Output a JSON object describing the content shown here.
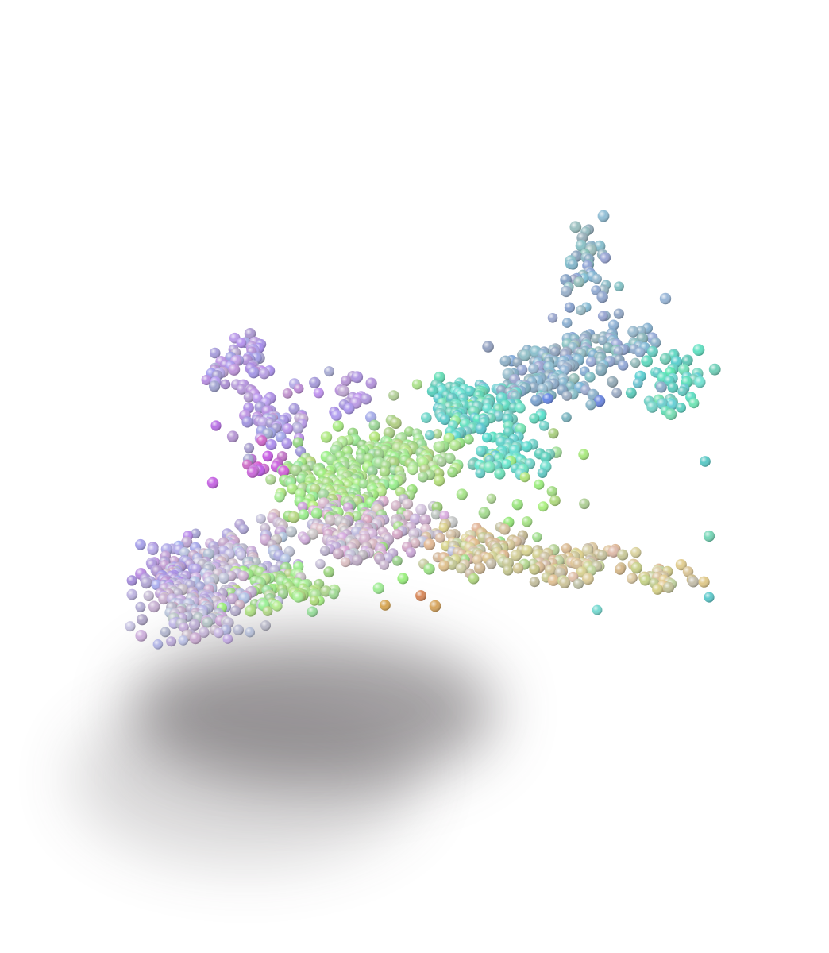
{
  "scene": {
    "background": "#ffffff",
    "subject": "point-cloud-airplane",
    "sphere_palette": {
      "nose": "#bfb6d6",
      "cockpit": "#b29ee0",
      "tail_fin": "#8fb3c9",
      "fuselage_upper": "#a6e08c",
      "fuselage_mid": "#cdb8d0",
      "wing_right": "#d2c79a",
      "tail_tip": "#6ad6c4",
      "highlight_magenta": "#c86ad8",
      "accent_orange": "#e39a55",
      "accent_blue": "#6b8fd8"
    },
    "shadow_color": "#5a5558"
  }
}
